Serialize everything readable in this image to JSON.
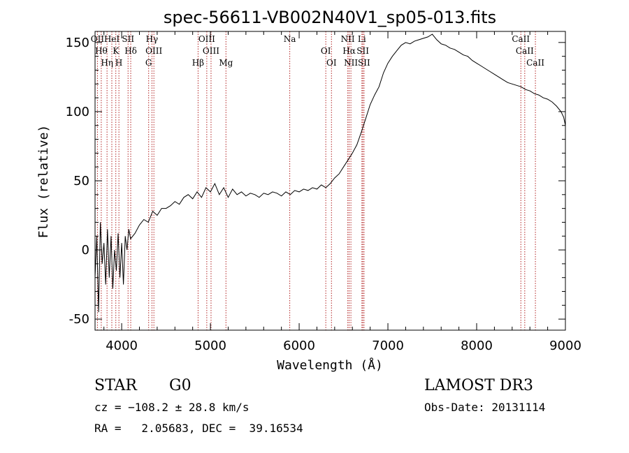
{
  "chart_data": {
    "type": "line",
    "title": "spec-56611-VB002N40V1_sp05-013.fits",
    "xlabel": "Wavelength (Å)",
    "ylabel": "Flux (relative)",
    "xlim": [
      3700,
      9000
    ],
    "ylim": [
      -58,
      158
    ],
    "xticks": [
      4000,
      5000,
      6000,
      7000,
      8000,
      9000
    ],
    "yticks": [
      -50,
      0,
      50,
      100,
      150
    ],
    "series": [
      {
        "name": "flux",
        "points": [
          [
            3700,
            -20
          ],
          [
            3720,
            10
          ],
          [
            3740,
            -45
          ],
          [
            3760,
            20
          ],
          [
            3780,
            -10
          ],
          [
            3800,
            5
          ],
          [
            3820,
            -25
          ],
          [
            3840,
            15
          ],
          [
            3860,
            -20
          ],
          [
            3880,
            10
          ],
          [
            3900,
            -28
          ],
          [
            3920,
            0
          ],
          [
            3940,
            -15
          ],
          [
            3960,
            12
          ],
          [
            3980,
            -20
          ],
          [
            4000,
            5
          ],
          [
            4020,
            -25
          ],
          [
            4040,
            10
          ],
          [
            4060,
            0
          ],
          [
            4080,
            15
          ],
          [
            4100,
            8
          ],
          [
            4150,
            12
          ],
          [
            4200,
            18
          ],
          [
            4250,
            22
          ],
          [
            4300,
            20
          ],
          [
            4350,
            28
          ],
          [
            4400,
            25
          ],
          [
            4450,
            30
          ],
          [
            4500,
            30
          ],
          [
            4550,
            32
          ],
          [
            4600,
            35
          ],
          [
            4650,
            33
          ],
          [
            4700,
            38
          ],
          [
            4750,
            40
          ],
          [
            4800,
            37
          ],
          [
            4850,
            42
          ],
          [
            4900,
            38
          ],
          [
            4950,
            45
          ],
          [
            5000,
            42
          ],
          [
            5050,
            48
          ],
          [
            5100,
            40
          ],
          [
            5150,
            45
          ],
          [
            5200,
            38
          ],
          [
            5250,
            44
          ],
          [
            5300,
            40
          ],
          [
            5350,
            42
          ],
          [
            5400,
            39
          ],
          [
            5450,
            41
          ],
          [
            5500,
            40
          ],
          [
            5550,
            38
          ],
          [
            5600,
            41
          ],
          [
            5650,
            40
          ],
          [
            5700,
            42
          ],
          [
            5750,
            41
          ],
          [
            5800,
            39
          ],
          [
            5850,
            42
          ],
          [
            5900,
            40
          ],
          [
            5950,
            43
          ],
          [
            6000,
            42
          ],
          [
            6050,
            44
          ],
          [
            6100,
            43
          ],
          [
            6150,
            45
          ],
          [
            6200,
            44
          ],
          [
            6250,
            47
          ],
          [
            6300,
            45
          ],
          [
            6350,
            48
          ],
          [
            6400,
            52
          ],
          [
            6450,
            55
          ],
          [
            6500,
            60
          ],
          [
            6550,
            65
          ],
          [
            6600,
            70
          ],
          [
            6650,
            76
          ],
          [
            6700,
            85
          ],
          [
            6750,
            95
          ],
          [
            6800,
            105
          ],
          [
            6850,
            112
          ],
          [
            6900,
            118
          ],
          [
            6950,
            128
          ],
          [
            7000,
            135
          ],
          [
            7050,
            140
          ],
          [
            7100,
            144
          ],
          [
            7150,
            148
          ],
          [
            7200,
            150
          ],
          [
            7250,
            149
          ],
          [
            7300,
            151
          ],
          [
            7350,
            152
          ],
          [
            7400,
            153
          ],
          [
            7450,
            154
          ],
          [
            7500,
            156
          ],
          [
            7550,
            152
          ],
          [
            7600,
            149
          ],
          [
            7650,
            148
          ],
          [
            7700,
            146
          ],
          [
            7750,
            145
          ],
          [
            7800,
            143
          ],
          [
            7850,
            141
          ],
          [
            7900,
            140
          ],
          [
            7950,
            137
          ],
          [
            8000,
            135
          ],
          [
            8050,
            133
          ],
          [
            8100,
            131
          ],
          [
            8150,
            129
          ],
          [
            8200,
            127
          ],
          [
            8250,
            125
          ],
          [
            8300,
            123
          ],
          [
            8350,
            121
          ],
          [
            8400,
            120
          ],
          [
            8450,
            119
          ],
          [
            8500,
            118
          ],
          [
            8550,
            116
          ],
          [
            8600,
            115
          ],
          [
            8650,
            113
          ],
          [
            8700,
            112
          ],
          [
            8750,
            110
          ],
          [
            8800,
            109
          ],
          [
            8850,
            107
          ],
          [
            8900,
            104
          ],
          [
            8950,
            100
          ],
          [
            8980,
            96
          ],
          [
            9000,
            90
          ]
        ]
      }
    ],
    "line_markers": [
      {
        "x": 3727,
        "label": "OII"
      },
      {
        "x": 3770,
        "label": "Hθ"
      },
      {
        "x": 3835,
        "label": "Hη"
      },
      {
        "x": 3889,
        "label": "HeI"
      },
      {
        "x": 3934,
        "label": "K"
      },
      {
        "x": 3969,
        "label": "H"
      },
      {
        "x": 4072,
        "label": "SII"
      },
      {
        "x": 4102,
        "label": "Hδ"
      },
      {
        "x": 4304,
        "label": "G"
      },
      {
        "x": 4341,
        "label": "Hγ"
      },
      {
        "x": 4363,
        "label": "OIII"
      },
      {
        "x": 4861,
        "label": "Hβ"
      },
      {
        "x": 4959,
        "label": "OIII"
      },
      {
        "x": 5007,
        "label": "OIII"
      },
      {
        "x": 5175,
        "label": "Mg"
      },
      {
        "x": 5894,
        "label": "Na"
      },
      {
        "x": 6300,
        "label": "OI"
      },
      {
        "x": 6364,
        "label": "OI"
      },
      {
        "x": 6548,
        "label": "NII"
      },
      {
        "x": 6563,
        "label": "Hα"
      },
      {
        "x": 6583,
        "label": "NII"
      },
      {
        "x": 6707,
        "label": "Li"
      },
      {
        "x": 6717,
        "label": "SII"
      },
      {
        "x": 6731,
        "label": "SII"
      },
      {
        "x": 8498,
        "label": "CaII"
      },
      {
        "x": 8542,
        "label": "CaII"
      },
      {
        "x": 8662,
        "label": "CaII"
      }
    ],
    "marker_color": "#b22222",
    "line_color": "#000000"
  },
  "info": {
    "class": "STAR",
    "subclass": "G0",
    "survey": "LAMOST DR3",
    "cz": "cz = −108.2 ± 28.8 km/s",
    "obs_date": "Obs-Date: 20131114",
    "radec": "RA =   2.05683, DEC =  39.16534"
  }
}
